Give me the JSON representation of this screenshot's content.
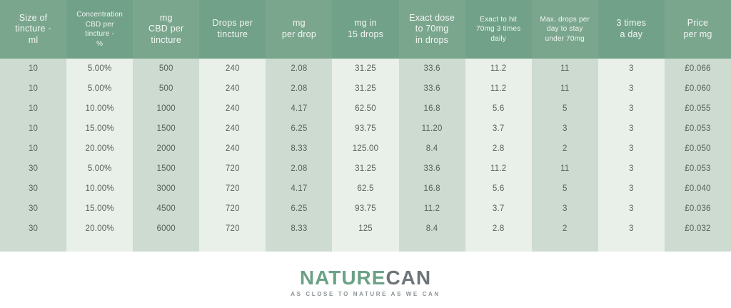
{
  "chart_data": {
    "type": "table",
    "columns": [
      "Size of tincture - ml",
      "Concentration CBD per tincture - %",
      "mg CBD per tincture",
      "Drops per tincture",
      "mg per drop",
      "mg in 15 drops",
      "Exact dose to 70mg in drops",
      "Exact to hit 70mg 3 times daily",
      "Max. drops per day to stay under 70mg",
      "3 times a day",
      "Price per mg"
    ],
    "column_display": [
      "Size of\ntincture -\nml",
      "Concentration\nCBD per\ntincture -\n%",
      "mg\nCBD per\ntincture",
      "Drops per\ntincture",
      "mg\nper drop",
      "mg in\n15 drops",
      "Exact dose\nto 70mg\nin drops",
      "Exact to hit\n70mg 3 times\ndaily",
      "Max. drops per\nday to stay\nunder 70mg",
      "3 times\na day",
      "Price\nper mg"
    ],
    "rows": [
      [
        "10",
        "5.00%",
        "500",
        "240",
        "2.08",
        "31.25",
        "33.6",
        "11.2",
        "11",
        "3",
        "£0.066"
      ],
      [
        "10",
        "5.00%",
        "500",
        "240",
        "2.08",
        "31.25",
        "33.6",
        "11.2",
        "11",
        "3",
        "£0.060"
      ],
      [
        "10",
        "10.00%",
        "1000",
        "240",
        "4.17",
        "62.50",
        "16.8",
        "5.6",
        "5",
        "3",
        "£0.055"
      ],
      [
        "10",
        "15.00%",
        "1500",
        "240",
        "6.25",
        "93.75",
        "11.20",
        "3.7",
        "3",
        "3",
        "£0.053"
      ],
      [
        "10",
        "20.00%",
        "2000",
        "240",
        "8.33",
        "125.00",
        "8.4",
        "2.8",
        "2",
        "3",
        "£0.050"
      ],
      [
        "30",
        "5.00%",
        "1500",
        "720",
        "2.08",
        "31.25",
        "33.6",
        "11.2",
        "11",
        "3",
        "£0.053"
      ],
      [
        "30",
        "10.00%",
        "3000",
        "720",
        "4.17",
        "62.5",
        "16.8",
        "5.6",
        "5",
        "3",
        "£0.040"
      ],
      [
        "30",
        "15.00%",
        "4500",
        "720",
        "6.25",
        "93.75",
        "11.2",
        "3.7",
        "3",
        "3",
        "£0.036"
      ],
      [
        "30",
        "20.00%",
        "6000",
        "720",
        "8.33",
        "125",
        "8.4",
        "2.8",
        "2",
        "3",
        "£0.032"
      ]
    ]
  },
  "footer": {
    "brand_primary": "NATURE",
    "brand_secondary": "CAN",
    "tagline": "AS CLOSE TO NATURE AS WE CAN"
  },
  "colors": {
    "header_band_a": "#7ba68e",
    "header_band_b": "#72a189",
    "body_band_a": "#cddbd0",
    "body_band_b": "#e9efe9",
    "header_text": "#f1f6f2",
    "body_text": "#57615a",
    "brand_green": "#6ba187",
    "brand_gray": "#6e7578",
    "tagline_gray": "#8c9396"
  }
}
